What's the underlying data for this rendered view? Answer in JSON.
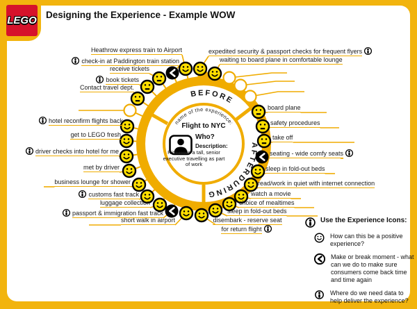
{
  "header": {
    "title": "Designing the Experience - Example WOW",
    "logo_text": "LEGO"
  },
  "wheel": {
    "center": {
      "curved_label": "name of the experience:",
      "experience_name": "Flight to NYC",
      "who_label": "Who?",
      "person_icon": "person-silhouette-icon",
      "description_label": "Description:",
      "description": "Richard is a tall, senior executive travelling as part of work"
    },
    "segments": {
      "before": "BEFORE",
      "during": "DURING",
      "after": "AFTER"
    },
    "touchpoints": [
      {
        "label": "Contact travel dept.",
        "icon": "neutral-face",
        "info": "none"
      },
      {
        "label": "book tickets",
        "icon": "neutral-face",
        "info": "left"
      },
      {
        "label": "receive tickets",
        "icon": "neutral-face",
        "info": "none"
      },
      {
        "label": "check-in at Paddington train station",
        "icon": "make-or-break",
        "info": "left"
      },
      {
        "label": "Heathrow express train to Airport",
        "icon": "smiley-face",
        "info": "none"
      },
      {
        "label": "expedited security & passport checks for frequent flyers",
        "icon": "smiley-face",
        "info": "right"
      },
      {
        "label": "waiting to board plane in comfortable lounge",
        "icon": "smiley-face",
        "info": "none"
      },
      {
        "label": "",
        "icon": "empty",
        "info": "none"
      },
      {
        "label": "",
        "icon": "empty",
        "info": "none"
      },
      {
        "label": "",
        "icon": "empty",
        "info": "none"
      },
      {
        "label": "board plane",
        "icon": "neutral-face",
        "info": "none"
      },
      {
        "label": "safety procedures",
        "icon": "neutral-face",
        "info": "none"
      },
      {
        "label": "take off",
        "icon": "neutral-face",
        "info": "none"
      },
      {
        "label": "seating - wide comfy seats",
        "icon": "make-or-break",
        "info": "right"
      },
      {
        "label": "sleep in fold-out beds",
        "icon": "smiley-face",
        "info": "none"
      },
      {
        "label": "read/work in quiet with internet connection",
        "icon": "smiley-face",
        "info": "none"
      },
      {
        "label": "watch a movie",
        "icon": "smiley-face",
        "info": "none"
      },
      {
        "label": "choice of mealtimes",
        "icon": "smiley-face",
        "info": "none"
      },
      {
        "label": "sleep in fold-out beds",
        "icon": "smiley-face",
        "info": "none"
      },
      {
        "label": "disembark - reserve seat for return flight",
        "icon": "smiley-face",
        "info": "right"
      },
      {
        "label": "short walk in airport",
        "icon": "smiley-face",
        "info": "none"
      },
      {
        "label": "passport & immigration fast track",
        "icon": "make-or-break",
        "info": "left"
      },
      {
        "label": "luggage collection",
        "icon": "smiley-face",
        "info": "none"
      },
      {
        "label": "customs fast track",
        "icon": "smiley-face",
        "info": "left"
      },
      {
        "label": "business lounge for shower",
        "icon": "smiley-face",
        "info": "none"
      },
      {
        "label": "met by driver",
        "icon": "smiley-face",
        "info": "none"
      },
      {
        "label": "driver checks into hotel for me",
        "icon": "smiley-face",
        "info": "left"
      },
      {
        "label": "get to LEGO fresh",
        "icon": "smiley-face",
        "info": "none"
      },
      {
        "label": "hotel reconfirm flights back",
        "icon": "smiley-face",
        "info": "left"
      },
      {
        "label": "",
        "icon": "empty",
        "info": "none"
      }
    ]
  },
  "legend": {
    "title": "Use the Experience Icons:",
    "items": [
      {
        "icon": "smiley-face",
        "text": "How can this be a positive experience?"
      },
      {
        "icon": "make-or-break",
        "text": "Make or break moment - what can we do to make sure consumers come back time and time again"
      },
      {
        "icon": "info",
        "text": "Where do we need data to help deliver the experience?"
      }
    ]
  },
  "colors": {
    "frame_yellow": "#F2B40E",
    "ring_yellow": "#F0AC00",
    "face_yellow": "#FFDE00",
    "lego_red": "#D6122B",
    "text": "#1a1a1a"
  }
}
